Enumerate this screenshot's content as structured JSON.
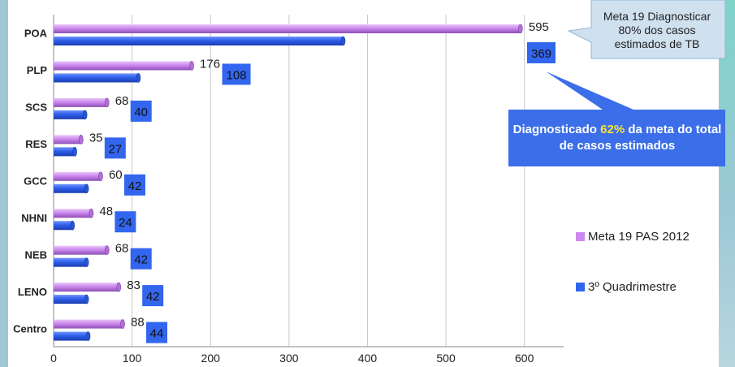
{
  "chart_data": {
    "type": "bar",
    "orientation": "horizontal",
    "title": "",
    "categories": [
      "POA",
      "PLP",
      "SCS",
      "RES",
      "GCC",
      "NHNI",
      "NEB",
      "LENO",
      "Centro"
    ],
    "series": [
      {
        "name": "Meta 19 PAS 2012",
        "color": "#cc88ee",
        "values": [
          595,
          176,
          68,
          35,
          60,
          48,
          68,
          83,
          88
        ]
      },
      {
        "name": "3º Quadrimestre",
        "color": "#3366ee",
        "values": [
          369,
          108,
          40,
          27,
          42,
          24,
          42,
          42,
          44
        ]
      }
    ],
    "xlim": [
      0,
      650
    ],
    "x_ticks": [
      0,
      100,
      200,
      300,
      400,
      500,
      600
    ],
    "grid": true,
    "legend_position": "right",
    "annotations": {
      "target_note": "Meta 19 Diagnosticar 80% dos casos estimados de TB",
      "result_before": "Diagnosticado ",
      "result_highlight": "62%",
      "result_after": " da meta do total de casos estimados"
    }
  }
}
